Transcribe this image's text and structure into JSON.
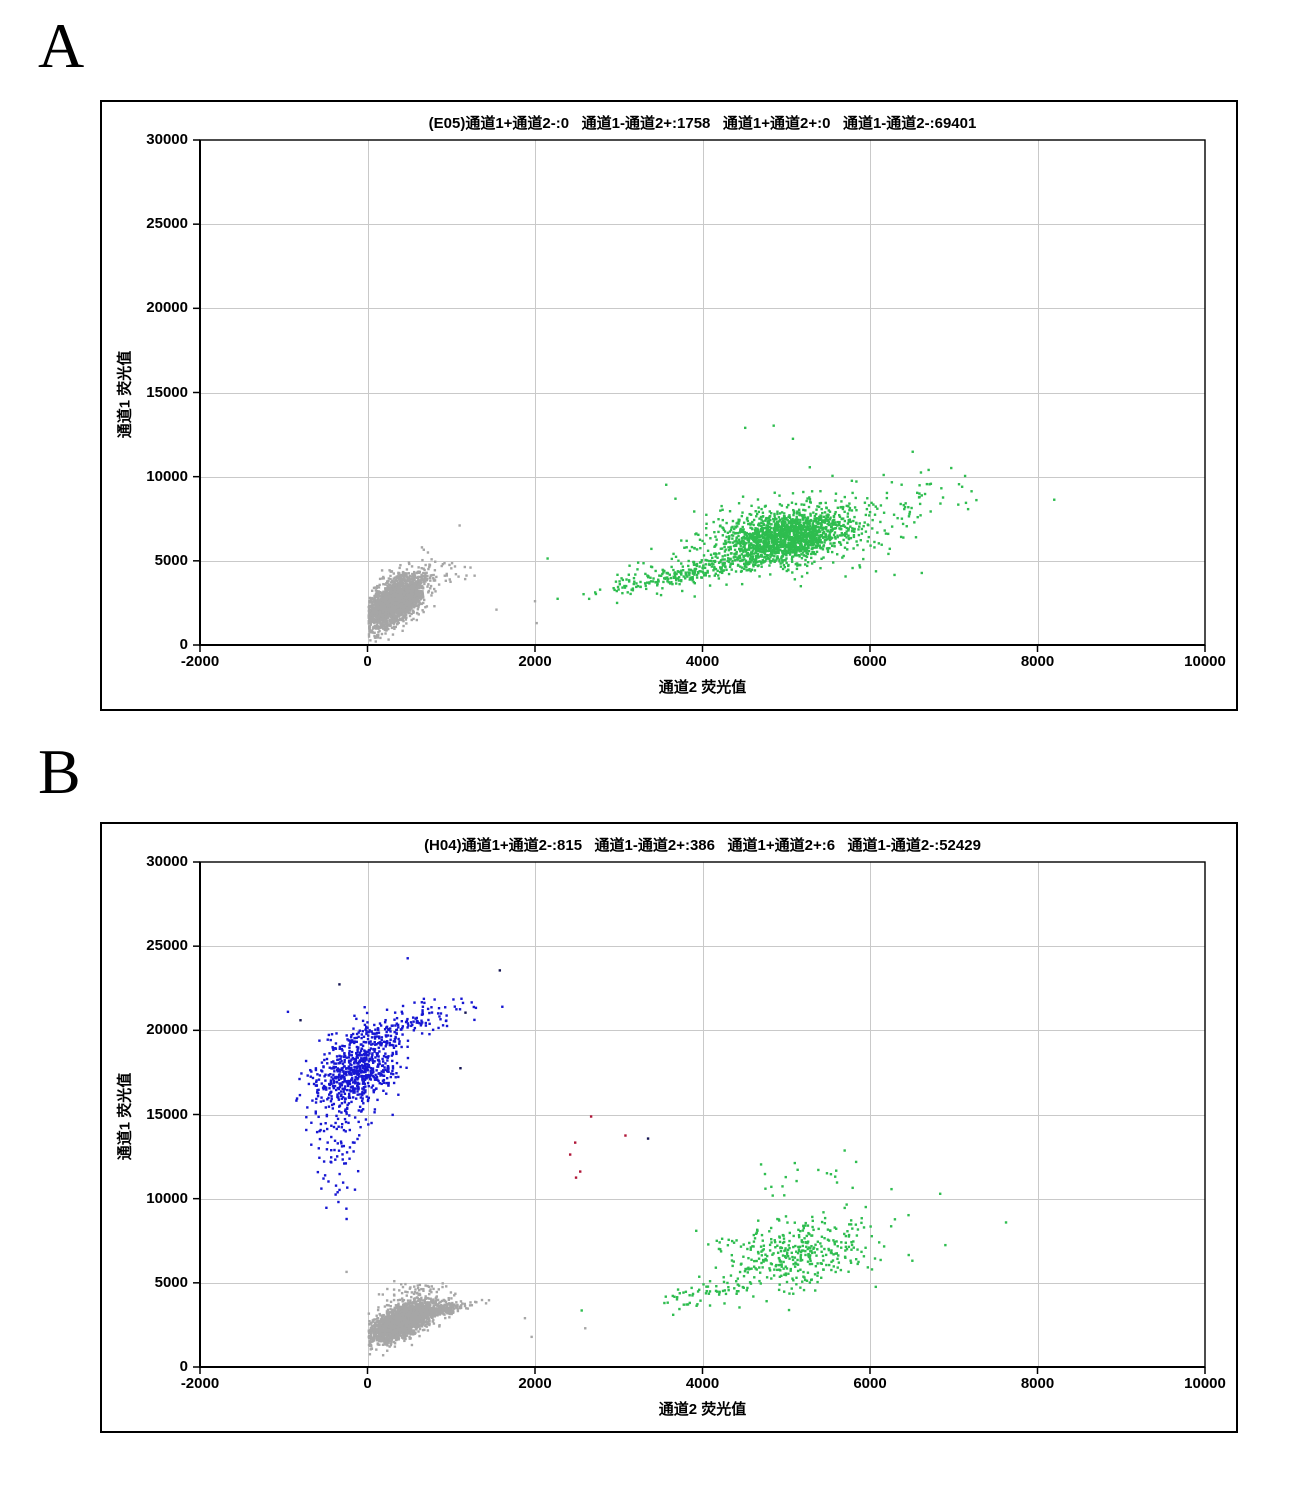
{
  "page": {
    "panel_a_letter": "A",
    "panel_b_letter": "B"
  },
  "colors": {
    "gray": "#a6a6a6",
    "green": "#2ebd4f",
    "blue": "#1616d2",
    "red": "#b01638",
    "navy": "#141452",
    "grid": "#c9c9c9",
    "axis": "#000000"
  },
  "chart_data": [
    {
      "id": "panel-a",
      "type": "scatter",
      "well": "E05",
      "title": "(E05)通道1+通道2-:0   通道1-通道2+:1758   通道1+通道2+:0   通道1-通道2-:69401",
      "counts": {
        "ch1pos_ch2neg": 0,
        "ch1neg_ch2pos": 1758,
        "ch1pos_ch2pos": 0,
        "ch1neg_ch2neg": 69401
      },
      "xlabel": "通道2 荧光值",
      "ylabel": "通道1 荧光值",
      "xlim": [
        -2000,
        10000
      ],
      "ylim": [
        0,
        30000
      ],
      "xticks": [
        -2000,
        0,
        2000,
        4000,
        6000,
        8000,
        10000
      ],
      "yticks": [
        0,
        5000,
        10000,
        15000,
        20000,
        25000,
        30000
      ],
      "grid": true,
      "marker": {
        "shape": "square",
        "size": 2.4
      },
      "clusters": [
        {
          "name": "negative-droplets",
          "color": "gray",
          "n": 2300,
          "cx": 330,
          "cy": 2600,
          "sx": 165,
          "sy": 760,
          "rho": 0.55,
          "clip": [
            15,
            180
          ],
          "seed": 11
        },
        {
          "name": "negative-spray",
          "color": "gray",
          "n": 60,
          "cx": 680,
          "cy": 4100,
          "sx": 260,
          "sy": 420,
          "rho": 0.3,
          "seed": 12
        },
        {
          "name": "ch2-positive-main",
          "color": "green",
          "n": 1650,
          "cx": 5000,
          "cy": 6400,
          "sx": 410,
          "sy": 800,
          "rho": 0.35,
          "seed": 13
        },
        {
          "name": "ch2-positive-tail",
          "color": "green",
          "n": 280,
          "cx": 3850,
          "cy": 4300,
          "sx": 520,
          "sy": 640,
          "rho": 0.82,
          "seed": 14
        },
        {
          "name": "ch2-positive-halo",
          "color": "green",
          "n": 150,
          "cx": 5100,
          "cy": 7100,
          "sx": 850,
          "sy": 1650,
          "rho": 0.3,
          "seed": 15
        },
        {
          "name": "ch2-positive-right",
          "color": "green",
          "n": 45,
          "cx": 6500,
          "cy": 8400,
          "sx": 380,
          "sy": 1050,
          "rho": 0.2,
          "seed": 16
        }
      ],
      "extra_points": [
        {
          "color": "gray",
          "pts": [
            [
              1100,
              7100
            ],
            [
              650,
              5800
            ],
            [
              2000,
              2600
            ],
            [
              1540,
              2100
            ],
            [
              2020,
              1300
            ],
            [
              1230,
              4600
            ],
            [
              900,
              4800
            ]
          ]
        },
        {
          "color": "green",
          "pts": [
            [
              8200,
              8630
            ],
            [
              7100,
              9400
            ],
            [
              6510,
              11480
            ],
            [
              4510,
              12900
            ],
            [
              4850,
              13030
            ],
            [
              5080,
              12250
            ],
            [
              2980,
              2500
            ],
            [
              6700,
              10400
            ]
          ]
        }
      ]
    },
    {
      "id": "panel-b",
      "type": "scatter",
      "well": "H04",
      "title": "(H04)通道1+通道2-:815   通道1-通道2+:386   通道1+通道2+:6   通道1-通道2-:52429",
      "counts": {
        "ch1pos_ch2neg": 815,
        "ch1neg_ch2pos": 386,
        "ch1pos_ch2pos": 6,
        "ch1neg_ch2neg": 52429
      },
      "xlabel": "通道2 荧光值",
      "ylabel": "通道1 荧光值",
      "xlim": [
        -2000,
        10000
      ],
      "ylim": [
        0,
        30000
      ],
      "xticks": [
        -2000,
        0,
        2000,
        4000,
        6000,
        8000,
        10000
      ],
      "yticks": [
        0,
        5000,
        10000,
        15000,
        20000,
        25000,
        30000
      ],
      "grid": true,
      "marker": {
        "shape": "square",
        "size": 2.4
      },
      "clusters": [
        {
          "name": "negative-droplets",
          "color": "gray",
          "n": 2100,
          "cx": 400,
          "cy": 2700,
          "sx": 185,
          "sy": 600,
          "rho": 0.6,
          "clip": [
            15,
            200
          ],
          "seed": 21
        },
        {
          "name": "negative-arm",
          "color": "gray",
          "n": 280,
          "cx": 820,
          "cy": 3350,
          "sx": 190,
          "sy": 250,
          "rho": 0.75,
          "seed": 22
        },
        {
          "name": "negative-spray",
          "color": "gray",
          "n": 50,
          "cx": 520,
          "cy": 4400,
          "sx": 240,
          "sy": 380,
          "rho": 0.2,
          "seed": 23
        },
        {
          "name": "ch1-positive-main",
          "color": "blue",
          "n": 720,
          "cx": -140,
          "cy": 17600,
          "sx": 255,
          "sy": 1250,
          "rho": 0.45,
          "seed": 24
        },
        {
          "name": "ch1-positive-arm",
          "color": "blue",
          "n": 130,
          "cx": 420,
          "cy": 20200,
          "sx": 380,
          "sy": 760,
          "rho": 0.75,
          "seed": 25
        },
        {
          "name": "ch1-positive-tail",
          "color": "blue",
          "n": 85,
          "cx": -330,
          "cy": 13000,
          "sx": 170,
          "sy": 1900,
          "rho": 0.1,
          "seed": 26
        },
        {
          "name": "ch2-positive-main",
          "color": "green",
          "n": 390,
          "cx": 5150,
          "cy": 6700,
          "sx": 470,
          "sy": 1050,
          "rho": 0.3,
          "seed": 27
        },
        {
          "name": "ch2-positive-tail",
          "color": "green",
          "n": 65,
          "cx": 4200,
          "cy": 4500,
          "sx": 450,
          "sy": 480,
          "rho": 0.7,
          "seed": 28
        },
        {
          "name": "ch2-positive-upper",
          "color": "green",
          "n": 22,
          "cx": 5150,
          "cy": 11300,
          "sx": 420,
          "sy": 950,
          "rho": 0.0,
          "seed": 29
        }
      ],
      "extra_points": [
        {
          "color": "red",
          "pts": [
            [
              2670,
              14880
            ],
            [
              3080,
              13750
            ],
            [
              2480,
              13330
            ],
            [
              2420,
              12620
            ],
            [
              2540,
              11610
            ],
            [
              2490,
              11250
            ]
          ]
        },
        {
          "color": "navy",
          "pts": [
            [
              1580,
              23560
            ],
            [
              1170,
              21050
            ],
            [
              -335,
              22730
            ],
            [
              1110,
              17750
            ],
            [
              3350,
              13570
            ],
            [
              -800,
              20600
            ]
          ]
        },
        {
          "color": "blue",
          "pts": [
            [
              480,
              24280
            ],
            [
              -950,
              21100
            ],
            [
              1610,
              21400
            ]
          ]
        },
        {
          "color": "gray",
          "pts": [
            [
              -250,
              5650
            ],
            [
              1880,
              2900
            ],
            [
              1960,
              1790
            ],
            [
              2600,
              2300
            ]
          ]
        },
        {
          "color": "green",
          "pts": [
            [
              6900,
              7240
            ],
            [
              6460,
              9020
            ],
            [
              3650,
              3100
            ]
          ]
        }
      ]
    }
  ]
}
